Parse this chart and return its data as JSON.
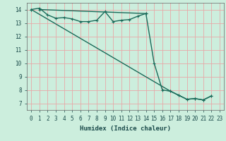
{
  "xlabel": "Humidex (Indice chaleur)",
  "bg_color": "#cceedd",
  "grid_color": "#e8a8a8",
  "line_color": "#1a6b5a",
  "xlim": [
    -0.5,
    23.5
  ],
  "ylim": [
    6.5,
    14.5
  ],
  "xticks": [
    0,
    1,
    2,
    3,
    4,
    5,
    6,
    7,
    8,
    9,
    10,
    11,
    12,
    13,
    14,
    15,
    16,
    17,
    18,
    19,
    20,
    21,
    22,
    23
  ],
  "yticks": [
    7,
    8,
    9,
    10,
    11,
    12,
    13,
    14
  ],
  "line1_x": [
    0,
    1,
    2,
    3,
    4,
    5,
    6,
    7,
    8,
    9,
    10,
    11,
    12,
    13,
    14
  ],
  "line1_y": [
    14.0,
    14.1,
    13.6,
    13.35,
    13.4,
    13.3,
    13.1,
    13.1,
    13.2,
    13.85,
    13.1,
    13.2,
    13.25,
    13.5,
    13.7
  ],
  "line2_x": [
    0,
    17,
    18,
    19,
    20,
    21,
    22
  ],
  "line2_y": [
    14.0,
    7.9,
    7.6,
    7.3,
    7.35,
    7.25,
    7.55
  ],
  "line3_x": [
    1,
    14,
    15,
    16,
    17,
    18,
    19,
    20,
    21,
    22
  ],
  "line3_y": [
    14.0,
    13.7,
    10.0,
    8.0,
    7.9,
    7.6,
    7.3,
    7.35,
    7.25,
    7.55
  ],
  "marker_size": 3.5,
  "line_width": 1.0,
  "xlabel_fontsize": 6.5,
  "tick_fontsize": 5.5
}
